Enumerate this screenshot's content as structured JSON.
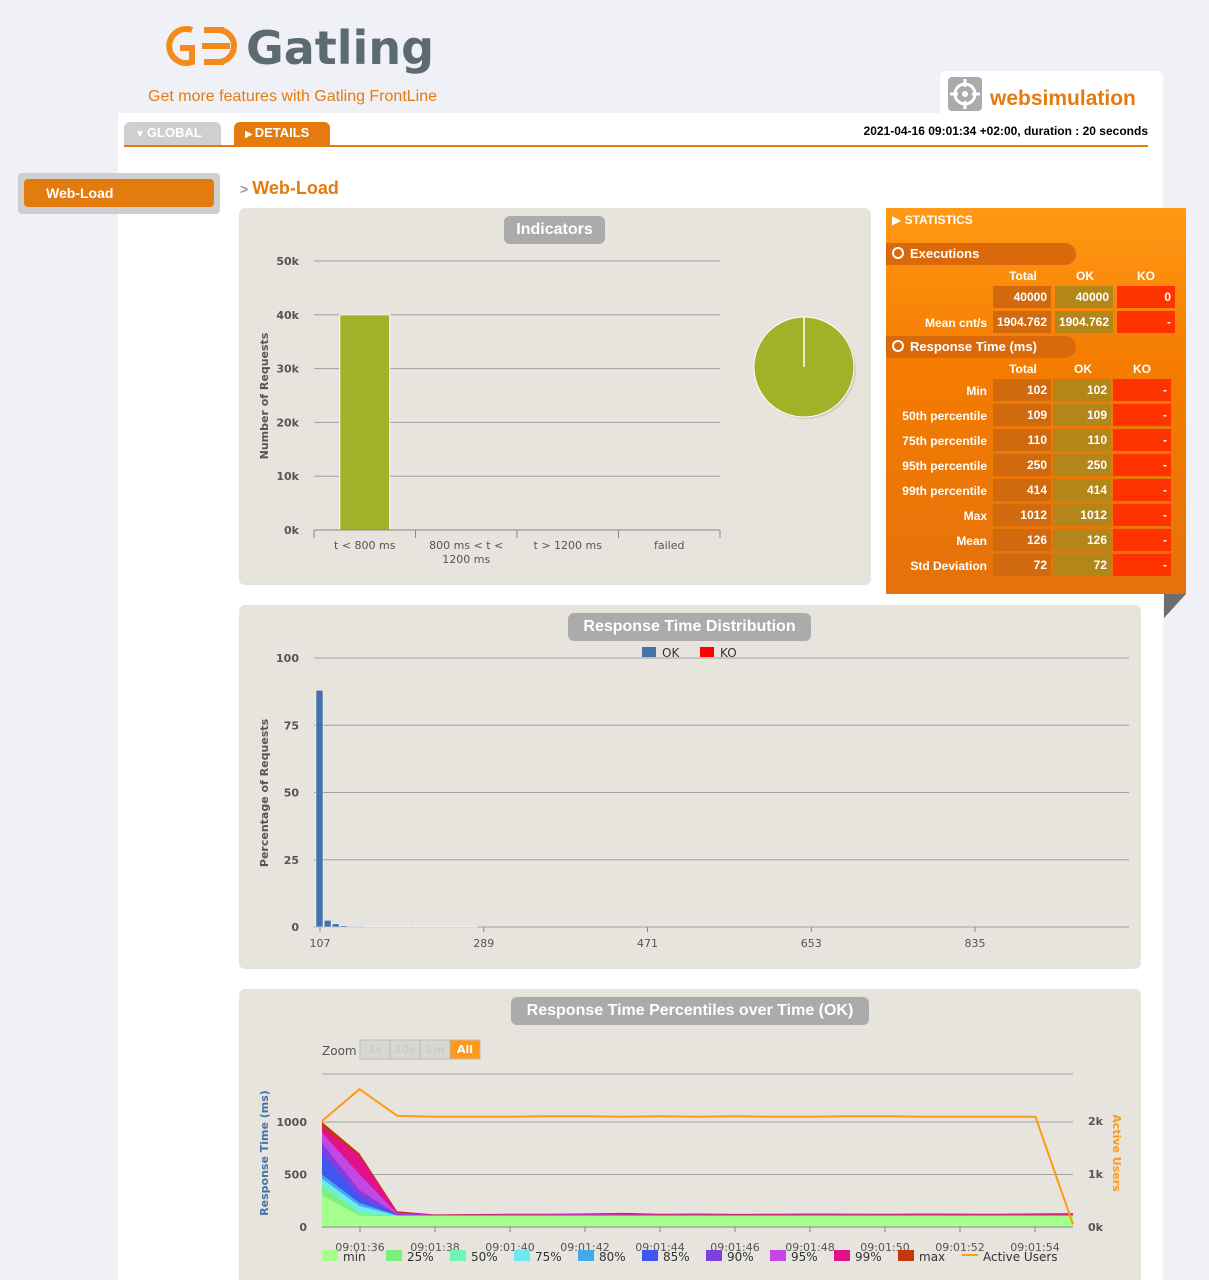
{
  "app": {
    "logo_text": "Gatling",
    "frontline_link": "Get more features with Gatling FrontLine",
    "simulation": "websimulation"
  },
  "tabs": {
    "global": "GLOBAL",
    "details": "DETAILS"
  },
  "run_info": "2021-04-16 09:01:34 +02:00, duration : 20 seconds",
  "sidebar": {
    "items": [
      {
        "label": "Web-Load"
      }
    ]
  },
  "breadcrumb": {
    "separator": ">",
    "title": "Web-Load"
  },
  "indicators": {
    "title": "Indicators"
  },
  "distribution": {
    "title": "Response Time Distribution"
  },
  "percentiles": {
    "title": "Response Time Percentiles over Time (OK)",
    "zoom_label": "Zoom",
    "zoom_buttons": [
      "1s",
      "10s",
      "1m",
      "All"
    ]
  },
  "statistics": {
    "title": "STATISTICS",
    "executions": {
      "label": "Executions",
      "headers": [
        "Total",
        "OK",
        "KO"
      ],
      "rows": [
        {
          "label": "",
          "total": "40000",
          "ok": "40000",
          "ko": "0"
        },
        {
          "label": "Mean cnt/s",
          "total": "1904.762",
          "ok": "1904.762",
          "ko": "-"
        }
      ]
    },
    "response_time": {
      "label": "Response Time (ms)",
      "headers": [
        "Total",
        "OK",
        "KO"
      ],
      "rows": [
        {
          "label": "Min",
          "total": "102",
          "ok": "102",
          "ko": "-"
        },
        {
          "label": "50th percentile",
          "total": "109",
          "ok": "109",
          "ko": "-"
        },
        {
          "label": "75th percentile",
          "total": "110",
          "ok": "110",
          "ko": "-"
        },
        {
          "label": "95th percentile",
          "total": "250",
          "ok": "250",
          "ko": "-"
        },
        {
          "label": "99th percentile",
          "total": "414",
          "ok": "414",
          "ko": "-"
        },
        {
          "label": "Max",
          "total": "1012",
          "ok": "1012",
          "ko": "-"
        },
        {
          "label": "Mean",
          "total": "126",
          "ok": "126",
          "ko": "-"
        },
        {
          "label": "Std Deviation",
          "total": "72",
          "ok": "72",
          "ko": "-"
        }
      ]
    }
  },
  "colors": {
    "accent": "#e47b0f",
    "ok_blue": "#4572a7",
    "ko_red": "#ff0000",
    "indicator_green": "#a0b228"
  },
  "chart_data": [
    {
      "type": "bar",
      "title": "",
      "ylabel": "Number of Requests",
      "ylim": [
        0,
        50000
      ],
      "yticks": [
        "0k",
        "10k",
        "20k",
        "30k",
        "40k",
        "50k"
      ],
      "categories": [
        "t < 800 ms",
        "800 ms < t < 1200 ms",
        "t > 1200 ms",
        "failed"
      ],
      "values": [
        40000,
        0,
        0,
        0
      ]
    },
    {
      "type": "pie",
      "title": "",
      "categories": [
        "t < 800 ms",
        "800 ms < t < 1200 ms",
        "t > 1200 ms",
        "failed"
      ],
      "values": [
        40000,
        0,
        0,
        0
      ]
    },
    {
      "type": "bar",
      "title": "",
      "ylabel": "Percentage of Requests",
      "ylim": [
        0,
        100
      ],
      "yticks": [
        "0",
        "25",
        "50",
        "75",
        "100"
      ],
      "xticks": [
        "107",
        "289",
        "471",
        "653",
        "835"
      ],
      "legend": [
        "OK",
        "KO"
      ],
      "x": [
        107,
        116,
        125,
        134,
        143,
        152,
        161,
        170,
        179,
        188,
        197,
        206,
        215,
        224,
        233,
        242,
        251,
        260,
        269,
        278
      ],
      "series": [
        {
          "name": "OK",
          "values": [
            88,
            2.5,
            1.2,
            0.5,
            0.3,
            0.3,
            0.2,
            0.2,
            0.2,
            0.2,
            0.2,
            0.2,
            0.2,
            0.2,
            0.2,
            0.2,
            0.2,
            0.2,
            0.2,
            0.2
          ]
        },
        {
          "name": "KO",
          "values": [
            0,
            0,
            0,
            0,
            0,
            0,
            0,
            0,
            0,
            0,
            0,
            0,
            0,
            0,
            0,
            0,
            0,
            0,
            0,
            0
          ]
        }
      ]
    },
    {
      "type": "area",
      "title": "",
      "ylabel": "Response Time (ms)",
      "y2label": "Active Users",
      "yticks": [
        "0",
        "500",
        "1000"
      ],
      "y2ticks": [
        "0k",
        "1k",
        "2k"
      ],
      "xticks": [
        "09:01:36",
        "09:01:38",
        "09:01:40",
        "09:01:42",
        "09:01:44",
        "09:01:46",
        "09:01:48",
        "09:01:50",
        "09:01:52",
        "09:01:54"
      ],
      "legend": [
        "min",
        "25%",
        "50%",
        "75%",
        "80%",
        "85%",
        "90%",
        "95%",
        "99%",
        "max",
        "Active Users"
      ],
      "x": [
        35,
        36,
        37,
        38,
        39,
        40,
        41,
        42,
        43,
        44,
        45,
        46,
        47,
        48,
        49,
        50,
        51,
        52,
        53,
        54,
        55
      ],
      "series": [
        {
          "name": "min",
          "values": [
            300,
            108,
            102,
            102,
            102,
            102,
            102,
            102,
            102,
            102,
            102,
            102,
            102,
            102,
            102,
            102,
            102,
            102,
            102,
            102,
            102
          ]
        },
        {
          "name": "25%",
          "values": [
            380,
            125,
            106,
            106,
            106,
            106,
            106,
            106,
            106,
            106,
            106,
            106,
            106,
            106,
            106,
            106,
            106,
            106,
            106,
            106,
            106
          ]
        },
        {
          "name": "50%",
          "values": [
            420,
            150,
            108,
            108,
            108,
            108,
            108,
            108,
            108,
            108,
            108,
            108,
            108,
            108,
            108,
            108,
            108,
            108,
            108,
            108,
            108
          ]
        },
        {
          "name": "75%",
          "values": [
            460,
            200,
            110,
            110,
            110,
            110,
            110,
            110,
            110,
            110,
            110,
            110,
            110,
            110,
            110,
            110,
            110,
            110,
            110,
            110,
            110
          ]
        },
        {
          "name": "80%",
          "values": [
            500,
            230,
            112,
            111,
            111,
            111,
            111,
            111,
            111,
            111,
            111,
            111,
            111,
            111,
            111,
            111,
            111,
            111,
            111,
            111,
            111
          ]
        },
        {
          "name": "85%",
          "values": [
            700,
            280,
            115,
            112,
            112,
            112,
            112,
            112,
            112,
            112,
            112,
            112,
            112,
            112,
            112,
            112,
            112,
            112,
            112,
            112,
            112
          ]
        },
        {
          "name": "90%",
          "values": [
            800,
            350,
            120,
            114,
            114,
            114,
            114,
            114,
            114,
            114,
            114,
            114,
            114,
            114,
            114,
            114,
            114,
            114,
            114,
            114,
            114
          ]
        },
        {
          "name": "95%",
          "values": [
            900,
            500,
            130,
            116,
            117,
            118,
            118,
            120,
            118,
            117,
            118,
            117,
            117,
            118,
            118,
            117,
            117,
            117,
            117,
            117,
            117
          ]
        },
        {
          "name": "99%",
          "values": [
            950,
            680,
            140,
            118,
            120,
            122,
            122,
            125,
            124,
            121,
            122,
            120,
            121,
            122,
            121,
            120,
            122,
            121,
            120,
            122,
            122
          ]
        },
        {
          "name": "max",
          "values": [
            1000,
            700,
            150,
            120,
            124,
            126,
            126,
            130,
            135,
            126,
            128,
            125,
            126,
            128,
            127,
            126,
            128,
            127,
            126,
            130,
            132
          ]
        },
        {
          "name": "Active Users",
          "values": [
            2000,
            2600,
            2100,
            2080,
            2080,
            2080,
            2090,
            2090,
            2080,
            2090,
            2080,
            2090,
            2080,
            2080,
            2090,
            2090,
            2080,
            2080,
            2080,
            2080,
            50
          ]
        }
      ]
    }
  ]
}
